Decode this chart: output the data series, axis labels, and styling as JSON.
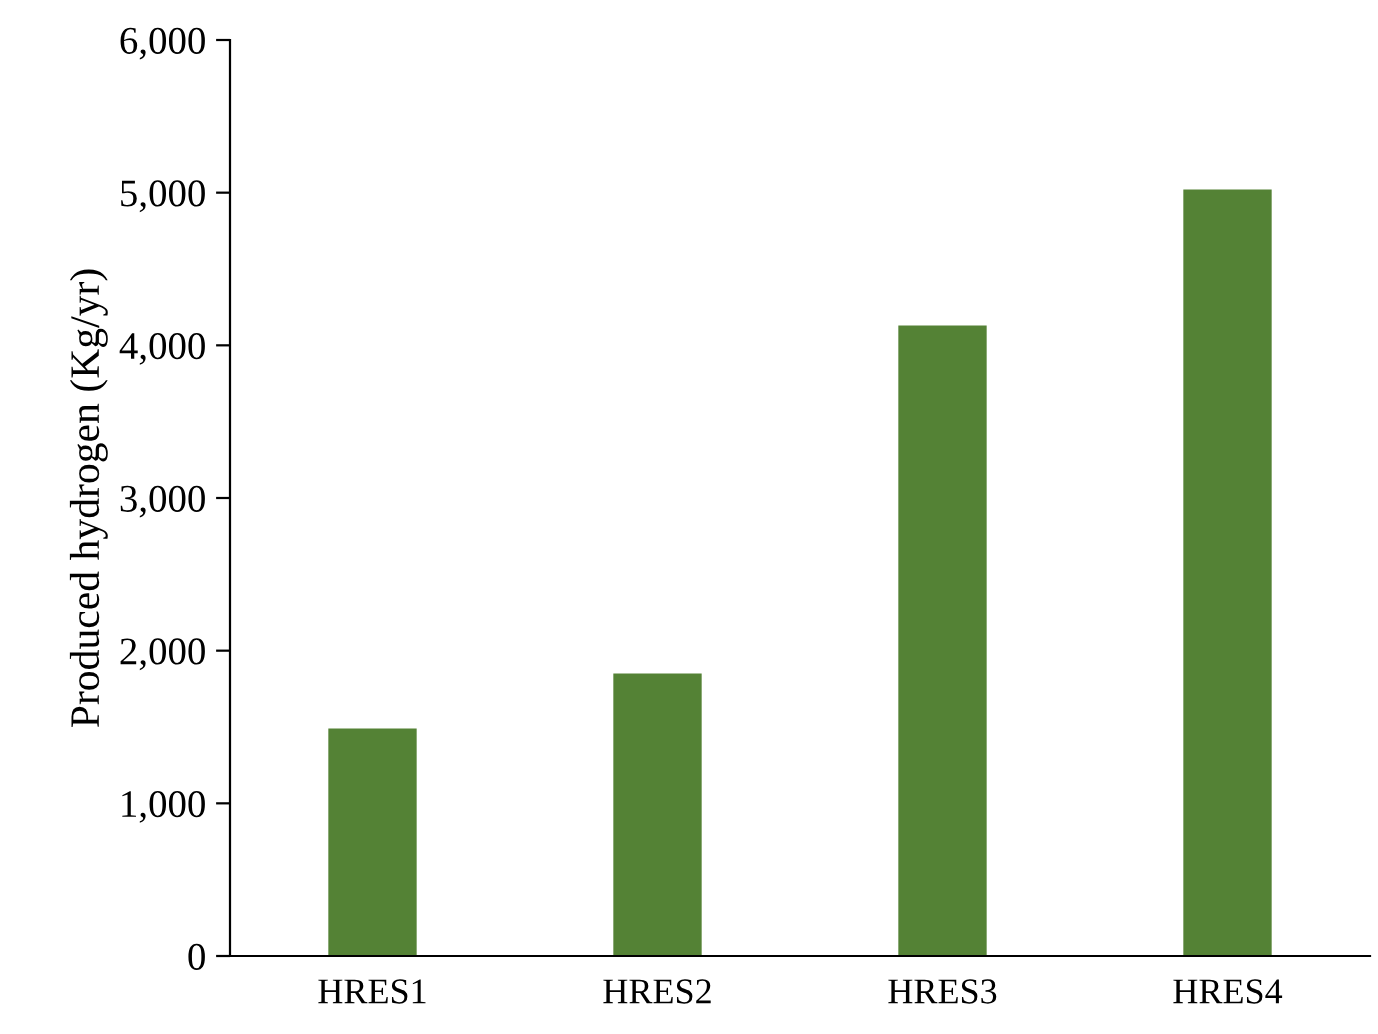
{
  "chart_data": {
    "type": "bar",
    "ylabel": "Produced hydrogen (Kg/yr)",
    "categories": [
      "HRES1",
      "HRES2",
      "HRES3",
      "HRES4"
    ],
    "values": [
      1490,
      1850,
      4130,
      5020
    ],
    "color": "#548235",
    "ylim": [
      0,
      6000
    ],
    "yticks": [
      {
        "value": 0,
        "label": "0"
      },
      {
        "value": 1000,
        "label": "1,000"
      },
      {
        "value": 2000,
        "label": "2,000"
      },
      {
        "value": 3000,
        "label": "3,000"
      },
      {
        "value": 4000,
        "label": "4,000"
      },
      {
        "value": 5000,
        "label": "5,000"
      },
      {
        "value": 6000,
        "label": "6,000"
      }
    ],
    "grid": false,
    "legend": false
  }
}
